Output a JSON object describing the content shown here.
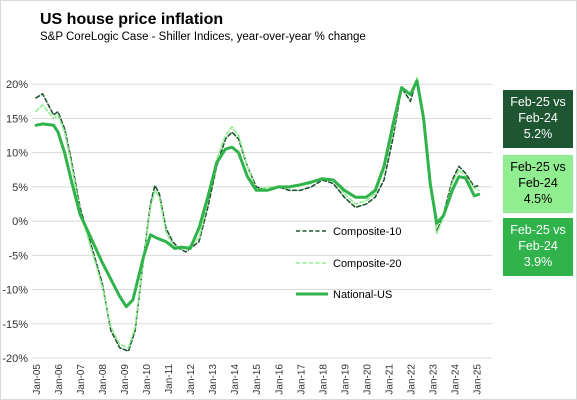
{
  "chart_data": {
    "type": "line",
    "title": "US house price inflation",
    "subtitle": "S&P CoreLogic Case - Shiller Indices, year-over-year   % change",
    "ylim": [
      -20,
      25
    ],
    "y_ticks": [
      "-20%",
      "-15%",
      "-10%",
      "-5%",
      "0%",
      "5%",
      "10%",
      "15%",
      "20%"
    ],
    "x_tick_labels": [
      "Jan-05",
      "Jan-06",
      "Jan-07",
      "Jan-08",
      "Jan-09",
      "Jan-10",
      "Jan-11",
      "Jan-12",
      "Jan-13",
      "Jan-14",
      "Jan-15",
      "Jan-16",
      "Jan-17",
      "Jan-18",
      "Jan-19",
      "Jan-20",
      "Jan-21",
      "Jan-22",
      "Jan-23",
      "Jan-24",
      "Jan-25"
    ],
    "grid": true,
    "x_start": "Jan-05",
    "x_end": "Feb-25",
    "series": [
      {
        "name": "Composite-10",
        "color": "#1e5631",
        "dash": "dashed",
        "points": [
          [
            2005.0,
            18.0
          ],
          [
            2005.3,
            18.6
          ],
          [
            2005.8,
            15.5
          ],
          [
            2006.0,
            16.0
          ],
          [
            2006.3,
            13.5
          ],
          [
            2006.6,
            9.0
          ],
          [
            2007.0,
            2.0
          ],
          [
            2007.5,
            -3.5
          ],
          [
            2008.0,
            -9.0
          ],
          [
            2008.4,
            -16.0
          ],
          [
            2008.8,
            -18.5
          ],
          [
            2009.2,
            -19.0
          ],
          [
            2009.5,
            -16.0
          ],
          [
            2009.9,
            -5.0
          ],
          [
            2010.2,
            2.5
          ],
          [
            2010.4,
            5.2
          ],
          [
            2010.6,
            4.0
          ],
          [
            2010.9,
            -1.0
          ],
          [
            2011.2,
            -3.0
          ],
          [
            2011.5,
            -4.0
          ],
          [
            2011.8,
            -4.5
          ],
          [
            2012.0,
            -4.0
          ],
          [
            2012.4,
            -3.0
          ],
          [
            2012.8,
            2.0
          ],
          [
            2013.2,
            8.0
          ],
          [
            2013.6,
            12.0
          ],
          [
            2013.9,
            13.0
          ],
          [
            2014.2,
            12.0
          ],
          [
            2014.6,
            8.0
          ],
          [
            2015.0,
            5.0
          ],
          [
            2015.5,
            4.5
          ],
          [
            2016.0,
            5.0
          ],
          [
            2016.5,
            4.5
          ],
          [
            2017.0,
            4.5
          ],
          [
            2017.5,
            5.0
          ],
          [
            2018.0,
            6.0
          ],
          [
            2018.5,
            5.5
          ],
          [
            2019.0,
            3.5
          ],
          [
            2019.5,
            2.0
          ],
          [
            2020.0,
            2.5
          ],
          [
            2020.4,
            3.5
          ],
          [
            2020.8,
            6.0
          ],
          [
            2021.2,
            12.0
          ],
          [
            2021.6,
            19.5
          ],
          [
            2022.0,
            17.5
          ],
          [
            2022.3,
            20.8
          ],
          [
            2022.6,
            15.0
          ],
          [
            2022.9,
            6.0
          ],
          [
            2023.2,
            -1.5
          ],
          [
            2023.5,
            1.0
          ],
          [
            2023.9,
            6.0
          ],
          [
            2024.2,
            8.0
          ],
          [
            2024.5,
            7.0
          ],
          [
            2024.9,
            5.0
          ],
          [
            2025.1,
            5.2
          ]
        ]
      },
      {
        "name": "Composite-20",
        "color": "#90ee90",
        "dash": "dashed",
        "points": [
          [
            2005.0,
            16.0
          ],
          [
            2005.3,
            17.0
          ],
          [
            2005.8,
            15.0
          ],
          [
            2006.0,
            15.5
          ],
          [
            2006.3,
            13.0
          ],
          [
            2006.6,
            8.5
          ],
          [
            2007.0,
            1.5
          ],
          [
            2007.5,
            -4.0
          ],
          [
            2008.0,
            -9.5
          ],
          [
            2008.4,
            -15.5
          ],
          [
            2008.8,
            -18.0
          ],
          [
            2009.2,
            -18.5
          ],
          [
            2009.5,
            -15.5
          ],
          [
            2009.9,
            -5.0
          ],
          [
            2010.2,
            2.0
          ],
          [
            2010.4,
            4.5
          ],
          [
            2010.6,
            3.5
          ],
          [
            2010.9,
            -1.5
          ],
          [
            2011.2,
            -3.5
          ],
          [
            2011.5,
            -4.0
          ],
          [
            2011.8,
            -4.0
          ],
          [
            2012.0,
            -3.5
          ],
          [
            2012.4,
            -2.5
          ],
          [
            2012.8,
            3.0
          ],
          [
            2013.2,
            9.0
          ],
          [
            2013.6,
            12.5
          ],
          [
            2013.9,
            13.8
          ],
          [
            2014.2,
            12.5
          ],
          [
            2014.6,
            8.0
          ],
          [
            2015.0,
            4.5
          ],
          [
            2015.5,
            5.0
          ],
          [
            2016.0,
            5.0
          ],
          [
            2016.5,
            5.0
          ],
          [
            2017.0,
            5.2
          ],
          [
            2017.5,
            5.5
          ],
          [
            2018.0,
            6.3
          ],
          [
            2018.5,
            6.0
          ],
          [
            2019.0,
            4.0
          ],
          [
            2019.5,
            2.5
          ],
          [
            2020.0,
            3.0
          ],
          [
            2020.4,
            4.0
          ],
          [
            2020.8,
            7.5
          ],
          [
            2021.2,
            13.0
          ],
          [
            2021.6,
            19.5
          ],
          [
            2022.0,
            18.5
          ],
          [
            2022.3,
            21.0
          ],
          [
            2022.6,
            15.5
          ],
          [
            2022.9,
            6.5
          ],
          [
            2023.2,
            -1.8
          ],
          [
            2023.5,
            0.5
          ],
          [
            2023.9,
            5.5
          ],
          [
            2024.2,
            7.5
          ],
          [
            2024.5,
            6.5
          ],
          [
            2024.9,
            4.8
          ],
          [
            2025.1,
            4.5
          ]
        ]
      },
      {
        "name": "National-US",
        "color": "#2fb34a",
        "dash": "solid",
        "points": [
          [
            2005.0,
            14.0
          ],
          [
            2005.3,
            14.2
          ],
          [
            2005.8,
            14.0
          ],
          [
            2006.0,
            13.0
          ],
          [
            2006.3,
            10.0
          ],
          [
            2006.6,
            6.0
          ],
          [
            2007.0,
            1.0
          ],
          [
            2007.5,
            -2.5
          ],
          [
            2008.0,
            -6.0
          ],
          [
            2008.4,
            -8.5
          ],
          [
            2008.8,
            -11.0
          ],
          [
            2009.1,
            -12.5
          ],
          [
            2009.4,
            -11.5
          ],
          [
            2009.9,
            -5.0
          ],
          [
            2010.2,
            -2.0
          ],
          [
            2010.5,
            -2.5
          ],
          [
            2010.9,
            -3.0
          ],
          [
            2011.3,
            -4.0
          ],
          [
            2011.6,
            -3.8
          ],
          [
            2012.0,
            -4.0
          ],
          [
            2012.4,
            -1.0
          ],
          [
            2012.8,
            3.5
          ],
          [
            2013.2,
            8.5
          ],
          [
            2013.6,
            10.5
          ],
          [
            2013.9,
            10.8
          ],
          [
            2014.2,
            10.0
          ],
          [
            2014.6,
            6.5
          ],
          [
            2015.0,
            4.5
          ],
          [
            2015.5,
            4.5
          ],
          [
            2016.0,
            5.0
          ],
          [
            2016.5,
            5.0
          ],
          [
            2017.0,
            5.3
          ],
          [
            2017.5,
            5.7
          ],
          [
            2018.0,
            6.2
          ],
          [
            2018.5,
            6.0
          ],
          [
            2019.0,
            4.5
          ],
          [
            2019.5,
            3.5
          ],
          [
            2020.0,
            3.5
          ],
          [
            2020.4,
            4.5
          ],
          [
            2020.8,
            8.0
          ],
          [
            2021.2,
            14.0
          ],
          [
            2021.6,
            19.5
          ],
          [
            2022.0,
            18.5
          ],
          [
            2022.3,
            20.5
          ],
          [
            2022.6,
            15.0
          ],
          [
            2022.9,
            5.5
          ],
          [
            2023.2,
            -0.3
          ],
          [
            2023.5,
            0.8
          ],
          [
            2023.9,
            4.5
          ],
          [
            2024.2,
            6.5
          ],
          [
            2024.5,
            6.3
          ],
          [
            2024.9,
            3.7
          ],
          [
            2025.1,
            3.9
          ]
        ]
      }
    ],
    "legend": [
      {
        "label": "Composite-10",
        "color": "#1e5631",
        "style": "dashed"
      },
      {
        "label": "Composite-20",
        "color": "#90ee90",
        "style": "dashed"
      },
      {
        "label": "National-US",
        "color": "#2fb34a",
        "style": "solid"
      }
    ],
    "annotations": [
      {
        "lines": [
          "Feb-25 vs",
          "Feb-24",
          "5.2%"
        ],
        "bg": "#1e5631",
        "fg": "#ffffff"
      },
      {
        "lines": [
          "Feb-25 vs",
          "Feb-24",
          "4.5%"
        ],
        "bg": "#90ee90",
        "fg": "#000000"
      },
      {
        "lines": [
          "Feb-25 vs",
          "Feb-24",
          "3.9%"
        ],
        "bg": "#2fb34a",
        "fg": "#ffffff"
      }
    ]
  }
}
